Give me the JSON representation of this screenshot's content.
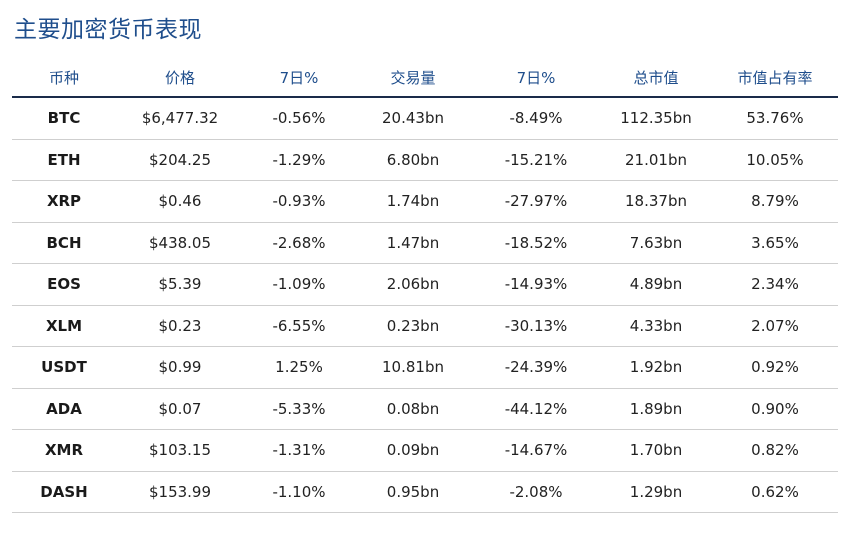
{
  "title": "主要加密货币表现",
  "columns": [
    "币种",
    "价格",
    "7日%",
    "交易量",
    "7日%",
    "总市值",
    "市值占有率"
  ],
  "rows": [
    [
      "BTC",
      "$6,477.32",
      "-0.56%",
      "20.43bn",
      "-8.49%",
      "112.35bn",
      "53.76%"
    ],
    [
      "ETH",
      "$204.25",
      "-1.29%",
      "6.80bn",
      "-15.21%",
      "21.01bn",
      "10.05%"
    ],
    [
      "XRP",
      "$0.46",
      "-0.93%",
      "1.74bn",
      "-27.97%",
      "18.37bn",
      "8.79%"
    ],
    [
      "BCH",
      "$438.05",
      "-2.68%",
      "1.47bn",
      "-18.52%",
      "7.63bn",
      "3.65%"
    ],
    [
      "EOS",
      "$5.39",
      "-1.09%",
      "2.06bn",
      "-14.93%",
      "4.89bn",
      "2.34%"
    ],
    [
      "XLM",
      "$0.23",
      "-6.55%",
      "0.23bn",
      "-30.13%",
      "4.33bn",
      "2.07%"
    ],
    [
      "USDT",
      "$0.99",
      "1.25%",
      "10.81bn",
      "-24.39%",
      "1.92bn",
      "0.92%"
    ],
    [
      "ADA",
      "$0.07",
      "-5.33%",
      "0.08bn",
      "-44.12%",
      "1.89bn",
      "0.90%"
    ],
    [
      "XMR",
      "$103.15",
      "-1.31%",
      "0.09bn",
      "-14.67%",
      "1.70bn",
      "0.82%"
    ],
    [
      "DASH",
      "$153.99",
      "-1.10%",
      "0.95bn",
      "-2.08%",
      "1.29bn",
      "0.62%"
    ]
  ],
  "colors": {
    "title": "#1f4e8c",
    "header_text": "#1f4e8c",
    "header_rule": "#1a2b4a",
    "row_rule": "#cfcfcf"
  }
}
